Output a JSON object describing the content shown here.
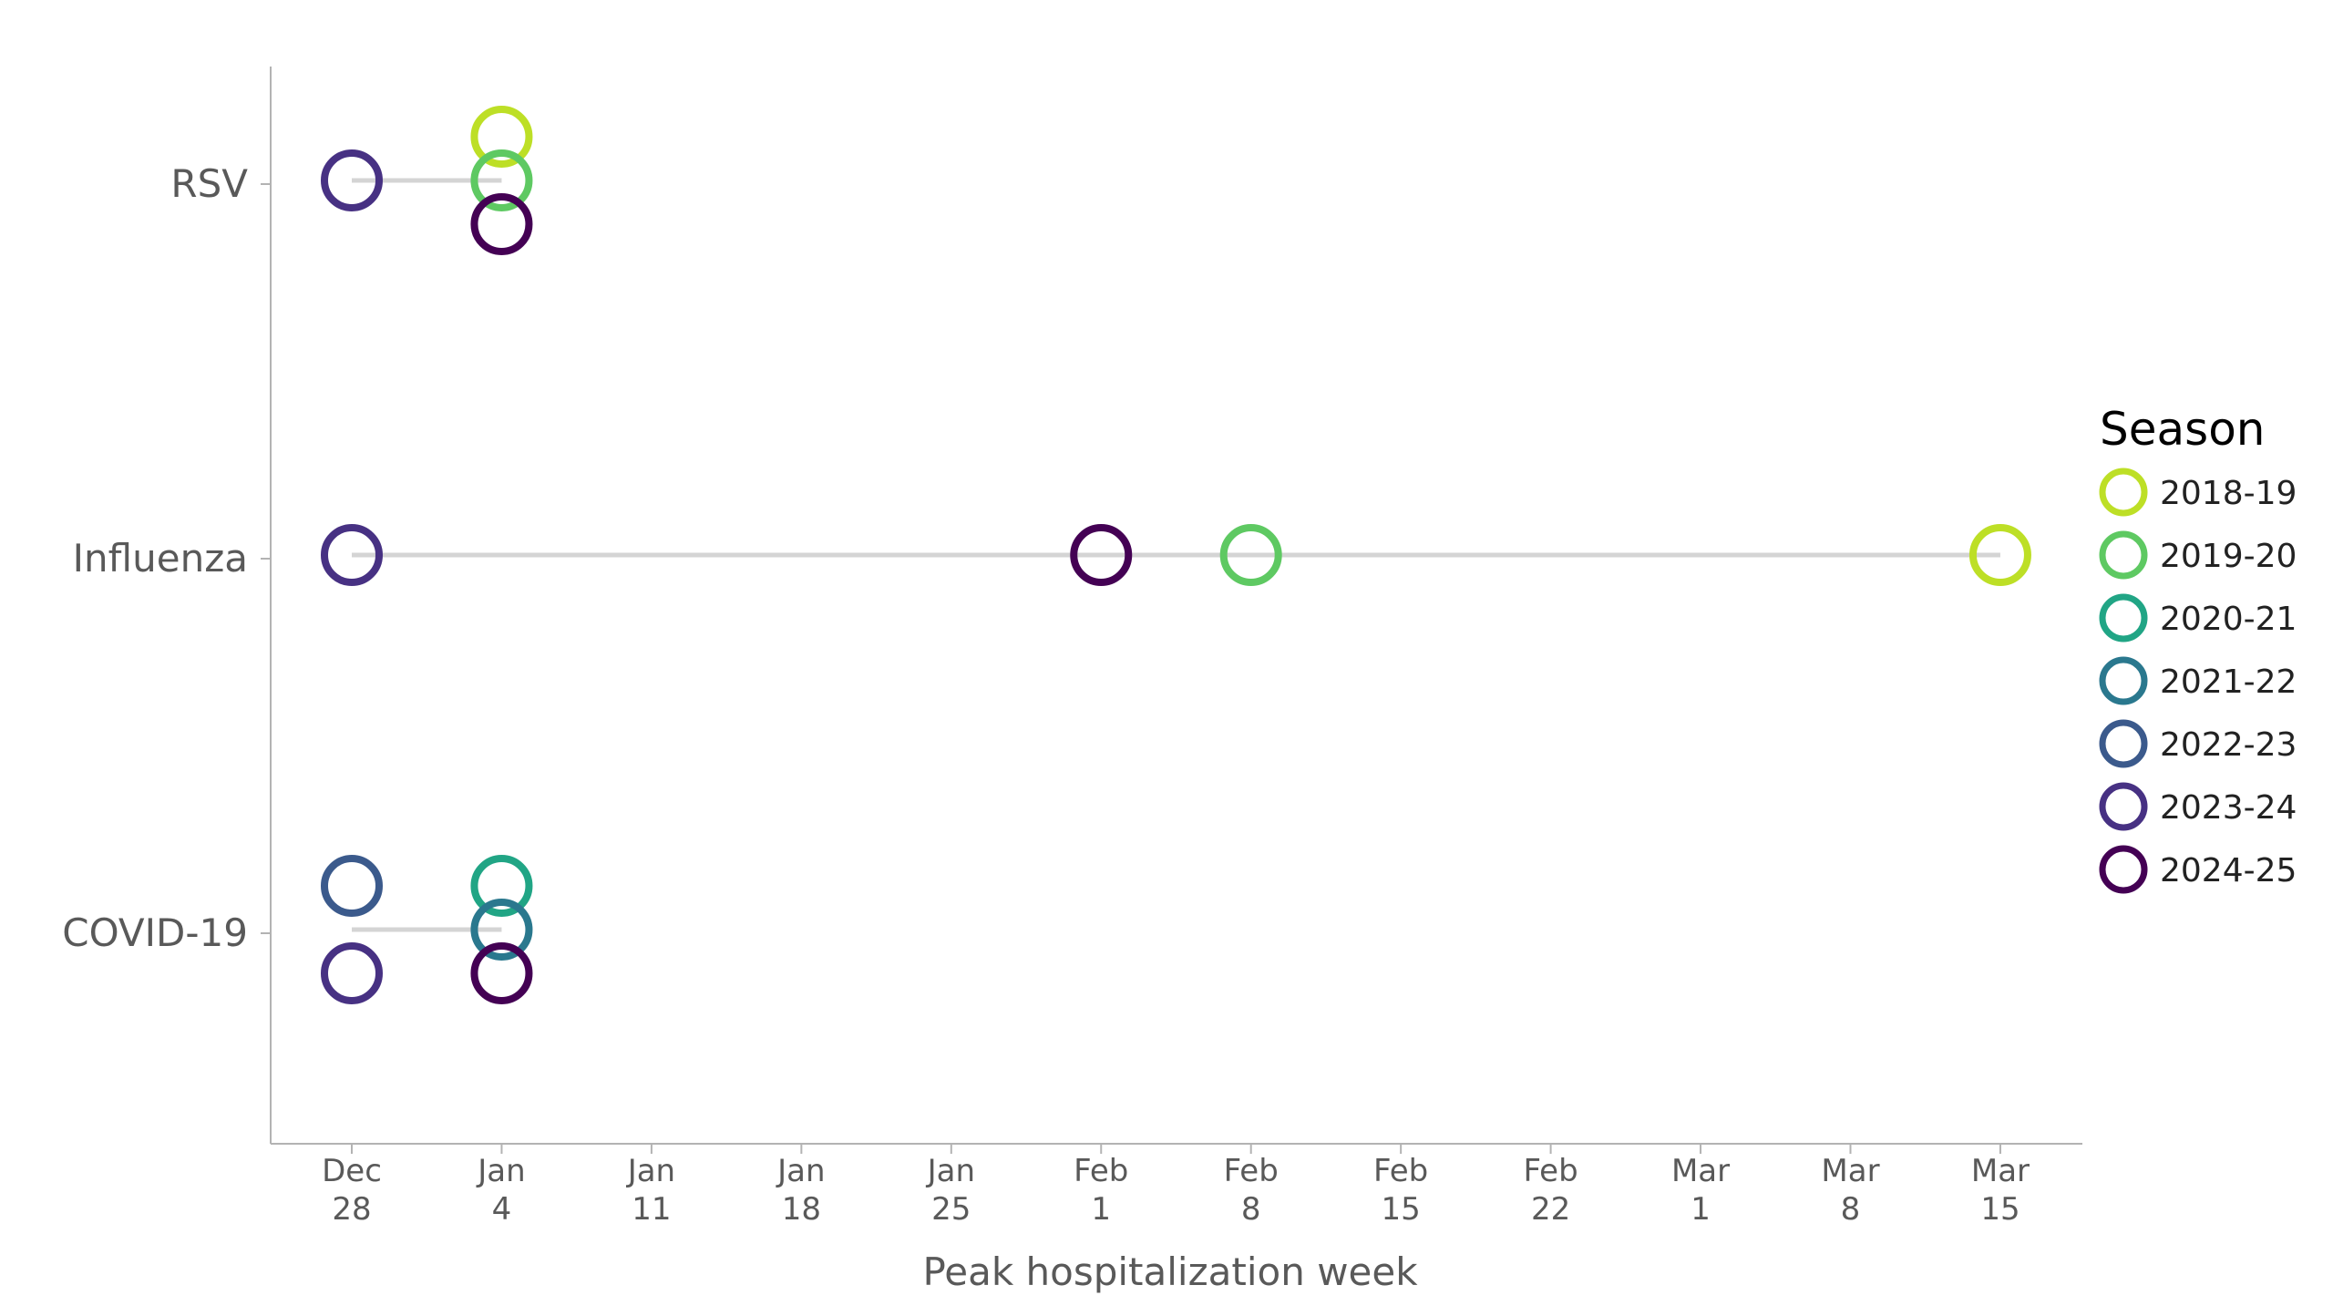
{
  "chart_data": {
    "type": "scatter",
    "title": "",
    "xlabel": "Peak hospitalization week",
    "ylabel": "",
    "x_ticks": [
      {
        "date": "Dec 28",
        "line1": "Dec",
        "line2": "28"
      },
      {
        "date": "Jan 4",
        "line1": "Jan",
        "line2": "4"
      },
      {
        "date": "Jan 11",
        "line1": "Jan",
        "line2": "11"
      },
      {
        "date": "Jan 18",
        "line1": "Jan",
        "line2": "18"
      },
      {
        "date": "Jan 25",
        "line1": "Jan",
        "line2": "25"
      },
      {
        "date": "Feb 1",
        "line1": "Feb",
        "line2": "1"
      },
      {
        "date": "Feb 8",
        "line1": "Feb",
        "line2": "8"
      },
      {
        "date": "Feb 15",
        "line1": "Feb",
        "line2": "15"
      },
      {
        "date": "Feb 22",
        "line1": "Feb",
        "line2": "22"
      },
      {
        "date": "Mar 1",
        "line1": "Mar",
        "line2": "1"
      },
      {
        "date": "Mar 8",
        "line1": "Mar",
        "line2": "8"
      },
      {
        "date": "Mar 15",
        "line1": "Mar",
        "line2": "15"
      }
    ],
    "categories": [
      "RSV",
      "Influenza",
      "COVID-19"
    ],
    "legend": {
      "title": "Season",
      "placement": "right",
      "entries": [
        {
          "name": "2018-19",
          "color": "#BDDF26"
        },
        {
          "name": "2019-20",
          "color": "#5EC962"
        },
        {
          "name": "2020-21",
          "color": "#21A585"
        },
        {
          "name": "2021-22",
          "color": "#2A788E"
        },
        {
          "name": "2022-23",
          "color": "#3B5A8C"
        },
        {
          "name": "2023-24",
          "color": "#473183"
        },
        {
          "name": "2024-25",
          "color": "#440154"
        }
      ]
    },
    "ranges": [
      {
        "category": "RSV",
        "from": "Dec 28",
        "to": "Jan 4"
      },
      {
        "category": "Influenza",
        "from": "Dec 28",
        "to": "Mar 15"
      },
      {
        "category": "COVID-19",
        "from": "Dec 28",
        "to": "Jan 4"
      }
    ],
    "series": [
      {
        "name": "2018-19",
        "points": [
          {
            "category": "RSV",
            "x": "Jan 4"
          },
          {
            "category": "Influenza",
            "x": "Mar 15"
          }
        ]
      },
      {
        "name": "2019-20",
        "points": [
          {
            "category": "RSV",
            "x": "Jan 4"
          },
          {
            "category": "Influenza",
            "x": "Feb 8"
          }
        ]
      },
      {
        "name": "2020-21",
        "points": [
          {
            "category": "COVID-19",
            "x": "Jan 4"
          }
        ]
      },
      {
        "name": "2021-22",
        "points": [
          {
            "category": "COVID-19",
            "x": "Jan 4"
          }
        ]
      },
      {
        "name": "2022-23",
        "points": [
          {
            "category": "COVID-19",
            "x": "Dec 28"
          }
        ]
      },
      {
        "name": "2023-24",
        "points": [
          {
            "category": "RSV",
            "x": "Dec 28"
          },
          {
            "category": "Influenza",
            "x": "Dec 28"
          },
          {
            "category": "COVID-19",
            "x": "Dec 28"
          }
        ]
      },
      {
        "name": "2024-25",
        "points": [
          {
            "category": "RSV",
            "x": "Jan 4"
          },
          {
            "category": "Influenza",
            "x": "Feb 1"
          },
          {
            "category": "COVID-19",
            "x": "Jan 4"
          }
        ]
      }
    ],
    "grid": false
  }
}
